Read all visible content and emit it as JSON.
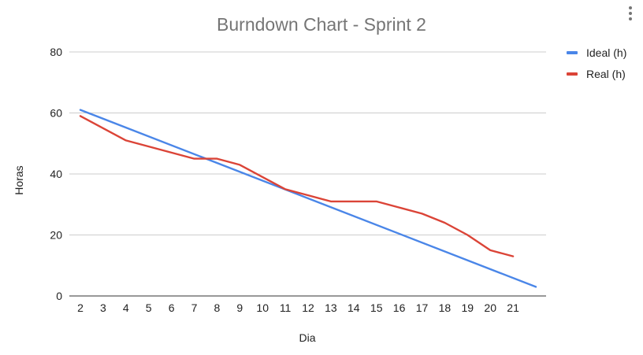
{
  "colors": {
    "ideal": "#4a86e8",
    "real": "#db4437",
    "grid": "#cccccc",
    "title": "#757575"
  },
  "menu": {
    "icon": "more-vert-icon"
  },
  "chart_data": {
    "type": "line",
    "title": "Burndown Chart - Sprint 2",
    "xlabel": "Dia",
    "ylabel": "Horas",
    "ylim": [
      0,
      80
    ],
    "yticks": [
      0,
      20,
      40,
      60,
      80
    ],
    "xlim": [
      2,
      22
    ],
    "xticks": [
      "2",
      "3",
      "4",
      "5",
      "6",
      "7",
      "8",
      "9",
      "10",
      "11",
      "12",
      "13",
      "14",
      "15",
      "16",
      "17",
      "18",
      "19",
      "20",
      "21"
    ],
    "grid": true,
    "legend_position": "right",
    "series": [
      {
        "name": "Ideal (h)",
        "color": "#4a86e8",
        "x": [
          2,
          22
        ],
        "y": [
          61,
          3
        ]
      },
      {
        "name": "Real (h)",
        "color": "#db4437",
        "x": [
          2,
          3,
          4,
          5,
          6,
          7,
          8,
          9,
          10,
          11,
          12,
          13,
          14,
          15,
          16,
          17,
          18,
          19,
          20,
          21
        ],
        "y": [
          59,
          55,
          51,
          49,
          47,
          45,
          45,
          43,
          39,
          35,
          33,
          31,
          31,
          31,
          29,
          27,
          24,
          20,
          15,
          13
        ]
      }
    ]
  }
}
